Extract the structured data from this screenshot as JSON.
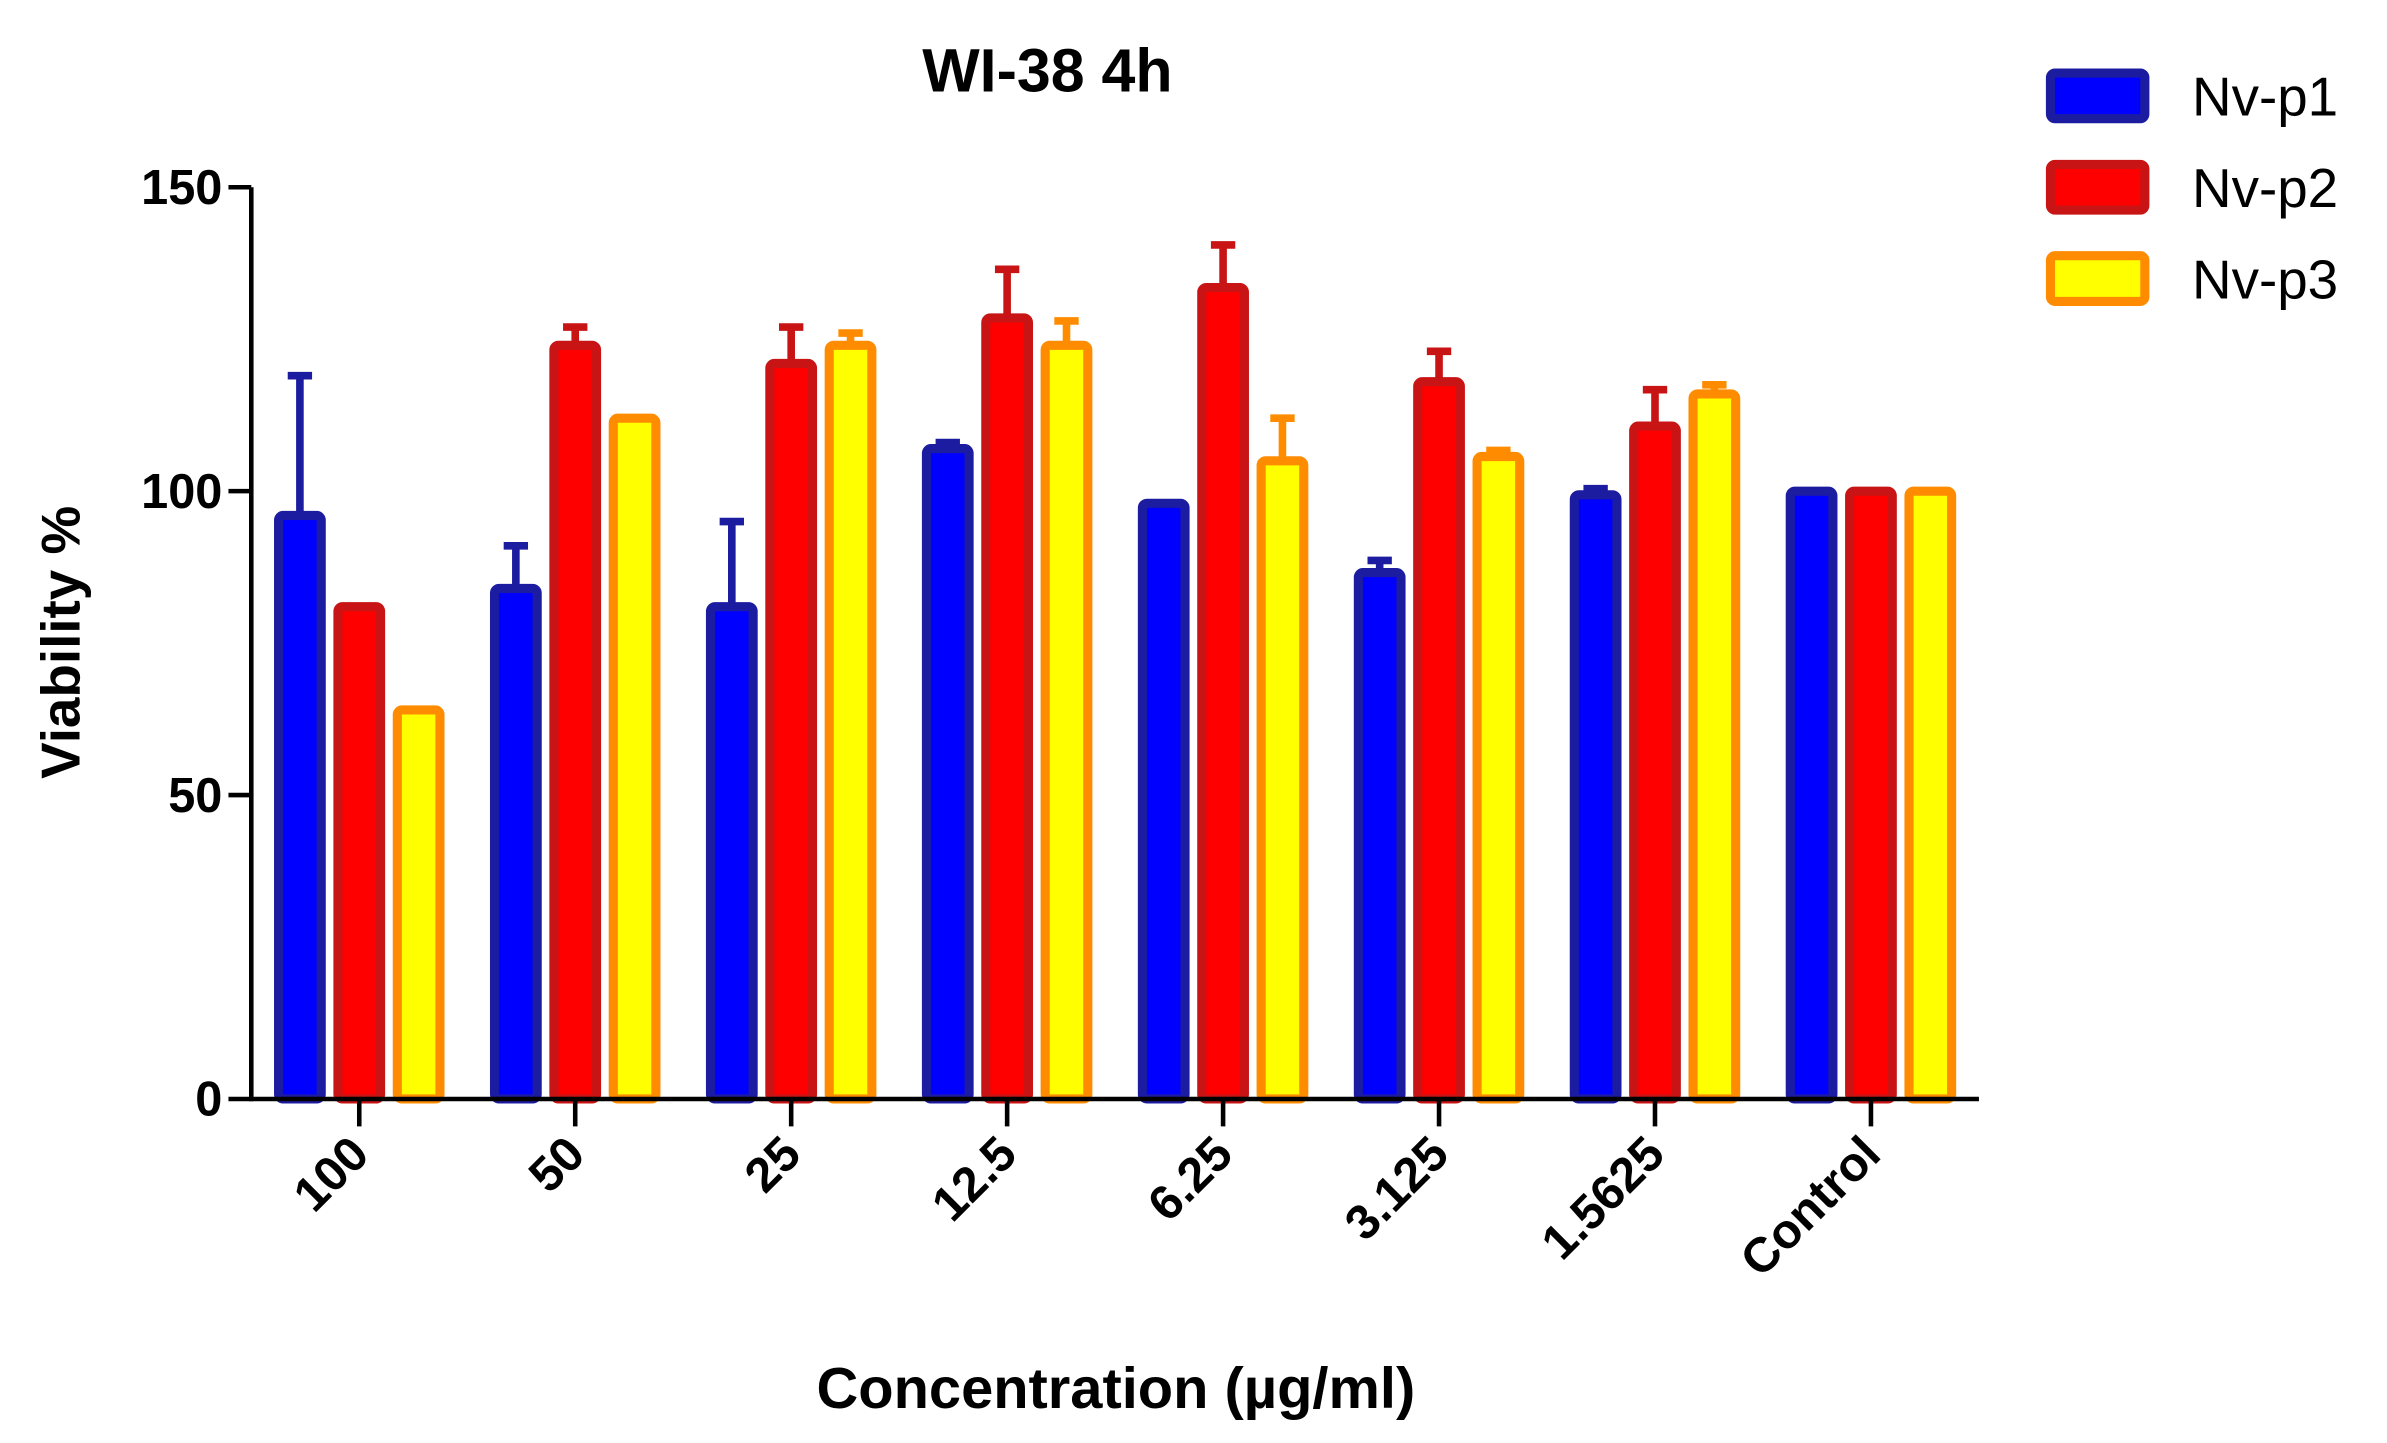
{
  "chart_data": {
    "type": "bar",
    "title": "WI-38 4h",
    "xlabel": "Concentration (µg/ml)",
    "ylabel": "Viability %",
    "categories": [
      "100",
      "50",
      "25",
      "12.5",
      "6.25",
      "3.125",
      "1.5625",
      "Control"
    ],
    "series": [
      {
        "name": "Nv-p1",
        "color": "#0000ff",
        "edgecolor": "#1c1ca0",
        "values": [
          96,
          84,
          81,
          107,
          98,
          86.6,
          99.4,
          100
        ],
        "errors": [
          23,
          7,
          14,
          1,
          0,
          2,
          1,
          0
        ]
      },
      {
        "name": "Nv-p2",
        "color": "#ff0000",
        "edgecolor": "#c81414",
        "values": [
          81,
          124,
          121,
          128.5,
          133.5,
          118,
          110.7,
          100
        ],
        "errors": [
          0,
          3,
          6,
          8,
          7,
          5,
          6,
          0
        ]
      },
      {
        "name": "Nv-p3",
        "color": "#ffff00",
        "edgecolor": "#ff8c00",
        "values": [
          64,
          112,
          124,
          124,
          105,
          105.7,
          116,
          100
        ],
        "errors": [
          0,
          0,
          2,
          4,
          7,
          1,
          1.5,
          0
        ]
      }
    ],
    "ylim": [
      0,
      150
    ],
    "yticks": [
      0,
      50,
      100,
      150
    ],
    "grid": false,
    "legend": "upper right"
  }
}
